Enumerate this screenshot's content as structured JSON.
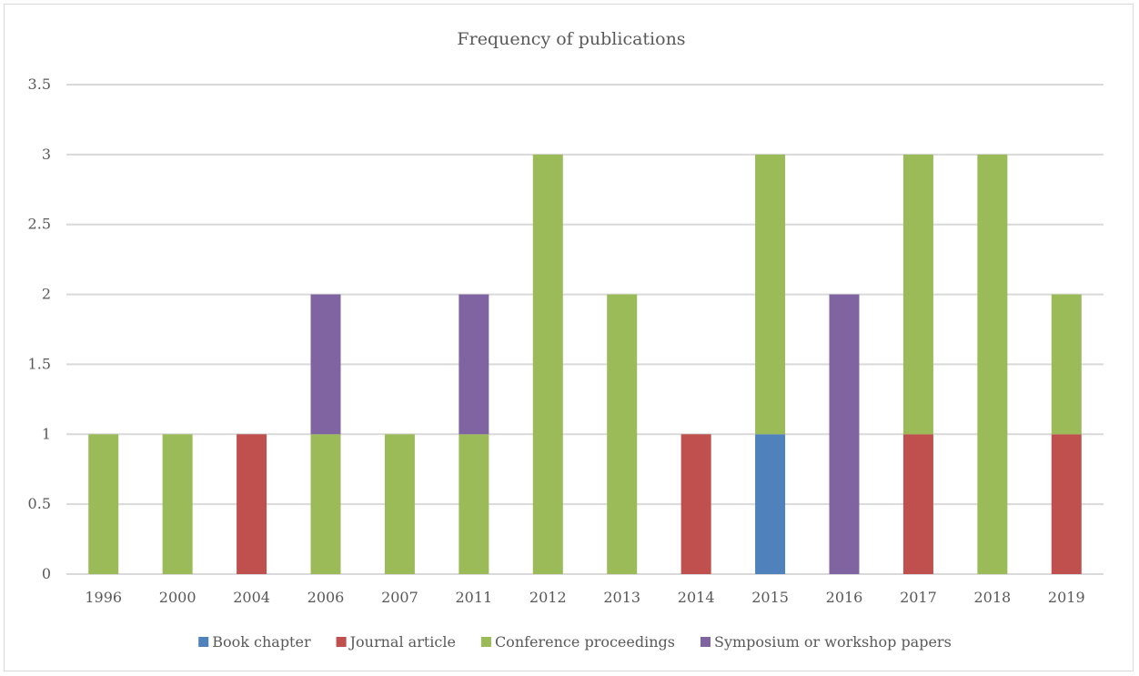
{
  "chart_data": {
    "type": "bar",
    "stacked": true,
    "title": "Frequency of publications",
    "xlabel": "",
    "ylabel": "",
    "ylim": [
      0,
      3.5
    ],
    "yticks": [
      "0",
      "0.5",
      "1",
      "1.5",
      "2",
      "2.5",
      "3",
      "3.5"
    ],
    "grid": true,
    "legend_position": "bottom",
    "categories": [
      "1996",
      "2000",
      "2004",
      "2006",
      "2007",
      "2011",
      "2012",
      "2013",
      "2014",
      "2015",
      "2016",
      "2017",
      "2018",
      "2019"
    ],
    "series": [
      {
        "name": "Book chapter",
        "color": "#4f81bd",
        "values": [
          0,
          0,
          0,
          0,
          0,
          0,
          0,
          0,
          0,
          1,
          0,
          0,
          0,
          0
        ]
      },
      {
        "name": "Journal article",
        "color": "#c0504d",
        "values": [
          0,
          0,
          1,
          0,
          0,
          0,
          0,
          0,
          1,
          0,
          0,
          1,
          0,
          1
        ]
      },
      {
        "name": "Conference proceedings",
        "color": "#9bbb59",
        "values": [
          1,
          1,
          0,
          1,
          1,
          1,
          3,
          2,
          0,
          2,
          0,
          2,
          3,
          1
        ]
      },
      {
        "name": "Symposium or workshop papers",
        "color": "#8064a2",
        "values": [
          0,
          0,
          0,
          1,
          0,
          1,
          0,
          0,
          0,
          0,
          2,
          0,
          0,
          0
        ]
      }
    ]
  }
}
